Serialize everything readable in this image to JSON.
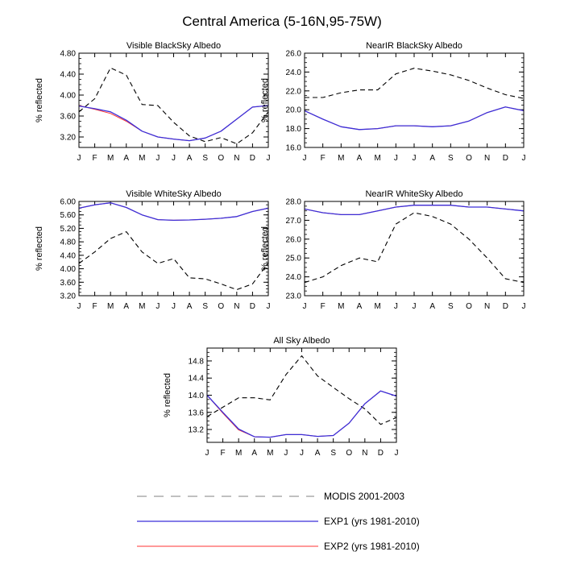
{
  "figure": {
    "title": "Central America (5-16N,95-75W)",
    "legend": {
      "placement": "bottom",
      "entries": [
        {
          "label": "MODIS 2001-2003",
          "color": "#000000",
          "dash": "dashed"
        },
        {
          "label": "EXP1 (yrs 1981-2010)",
          "color": "#3b2fd9",
          "dash": "solid"
        },
        {
          "label": "EXP2 (yrs 1981-2010)",
          "color": "#ff3333",
          "dash": "solid"
        }
      ]
    }
  },
  "chart_data": [
    {
      "type": "line",
      "title": "Visible BlackSky Albedo",
      "xlabel": "",
      "ylabel": "% reflected",
      "categories": [
        "J",
        "F",
        "M",
        "A",
        "M",
        "J",
        "J",
        "A",
        "S",
        "O",
        "N",
        "D",
        "J"
      ],
      "ylim": [
        3.0,
        4.8
      ],
      "yticks": [
        3.2,
        3.6,
        4.0,
        4.4,
        4.8
      ],
      "ytick_labels": [
        "3.20",
        "3.60",
        "4.00",
        "4.40",
        "4.80"
      ],
      "series": [
        {
          "name": "MODIS 2001-2003",
          "values": [
            3.68,
            3.93,
            4.52,
            4.38,
            3.82,
            3.8,
            3.48,
            3.22,
            3.11,
            3.19,
            3.07,
            3.28,
            3.68
          ]
        },
        {
          "name": "EXP1 (yrs 1981-2010)",
          "values": [
            3.79,
            3.74,
            3.68,
            3.52,
            3.31,
            3.2,
            3.16,
            3.13,
            3.18,
            3.31,
            3.54,
            3.77,
            3.8
          ]
        },
        {
          "name": "EXP2 (yrs 1981-2010)",
          "values": [
            3.8,
            3.73,
            3.65,
            3.5,
            3.31,
            3.2,
            3.16,
            3.13,
            3.18,
            3.31,
            3.54,
            3.77,
            3.8
          ]
        }
      ]
    },
    {
      "type": "line",
      "title": "NearIR BlackSky Albedo",
      "xlabel": "",
      "ylabel": "% reflected",
      "categories": [
        "J",
        "F",
        "M",
        "A",
        "M",
        "J",
        "J",
        "A",
        "S",
        "O",
        "N",
        "D",
        "J"
      ],
      "ylim": [
        16.0,
        26.0
      ],
      "yticks": [
        16.0,
        18.0,
        20.0,
        22.0,
        24.0,
        26.0
      ],
      "ytick_labels": [
        "16.0",
        "18.0",
        "20.0",
        "22.0",
        "24.0",
        "26.0"
      ],
      "series": [
        {
          "name": "MODIS 2001-2003",
          "values": [
            21.3,
            21.3,
            21.8,
            22.1,
            22.1,
            23.8,
            24.4,
            24.1,
            23.7,
            23.1,
            22.3,
            21.6,
            21.2
          ]
        },
        {
          "name": "EXP1 (yrs 1981-2010)",
          "values": [
            19.9,
            19.0,
            18.2,
            17.9,
            18.0,
            18.3,
            18.3,
            18.2,
            18.3,
            18.8,
            19.7,
            20.3,
            19.9
          ]
        },
        {
          "name": "EXP2 (yrs 1981-2010)",
          "values": [
            19.9,
            19.0,
            18.2,
            17.9,
            18.0,
            18.3,
            18.3,
            18.2,
            18.3,
            18.8,
            19.7,
            20.3,
            19.9
          ]
        }
      ]
    },
    {
      "type": "line",
      "title": "Visible WhiteSky Albedo",
      "xlabel": "",
      "ylabel": "% reflected",
      "categories": [
        "J",
        "F",
        "M",
        "A",
        "M",
        "J",
        "J",
        "A",
        "S",
        "O",
        "N",
        "D",
        "J"
      ],
      "ylim": [
        3.2,
        6.0
      ],
      "yticks": [
        3.2,
        3.6,
        4.0,
        4.4,
        4.8,
        5.2,
        5.6,
        6.0
      ],
      "ytick_labels": [
        "3.20",
        "3.60",
        "4.00",
        "4.40",
        "4.80",
        "5.20",
        "5.60",
        "6.00"
      ],
      "series": [
        {
          "name": "MODIS 2001-2003",
          "values": [
            4.16,
            4.5,
            4.9,
            5.1,
            4.5,
            4.16,
            4.3,
            3.73,
            3.7,
            3.55,
            3.38,
            3.55,
            4.18
          ]
        },
        {
          "name": "EXP1 (yrs 1981-2010)",
          "values": [
            5.8,
            5.9,
            5.96,
            5.82,
            5.6,
            5.46,
            5.44,
            5.45,
            5.47,
            5.5,
            5.55,
            5.7,
            5.8
          ]
        },
        {
          "name": "EXP2 (yrs 1981-2010)",
          "values": [
            5.8,
            5.9,
            5.96,
            5.82,
            5.6,
            5.46,
            5.44,
            5.45,
            5.47,
            5.5,
            5.55,
            5.7,
            5.8
          ]
        }
      ]
    },
    {
      "type": "line",
      "title": "NearIR WhiteSky Albedo",
      "xlabel": "",
      "ylabel": "% reflected",
      "categories": [
        "J",
        "F",
        "M",
        "A",
        "M",
        "J",
        "J",
        "A",
        "S",
        "O",
        "N",
        "D",
        "J"
      ],
      "ylim": [
        23.0,
        28.0
      ],
      "yticks": [
        23.0,
        24.0,
        25.0,
        26.0,
        27.0,
        28.0
      ],
      "ytick_labels": [
        "23.0",
        "24.0",
        "25.0",
        "26.0",
        "27.0",
        "28.0"
      ],
      "series": [
        {
          "name": "MODIS 2001-2003",
          "values": [
            23.7,
            24.0,
            24.6,
            25.0,
            24.8,
            26.8,
            27.4,
            27.2,
            26.8,
            26.0,
            25.0,
            23.9,
            23.7
          ]
        },
        {
          "name": "EXP1 (yrs 1981-2010)",
          "values": [
            27.6,
            27.4,
            27.3,
            27.3,
            27.5,
            27.7,
            27.8,
            27.8,
            27.8,
            27.7,
            27.7,
            27.6,
            27.5
          ]
        },
        {
          "name": "EXP2 (yrs 1981-2010)",
          "values": [
            27.6,
            27.4,
            27.3,
            27.3,
            27.5,
            27.7,
            27.8,
            27.8,
            27.8,
            27.7,
            27.7,
            27.6,
            27.5
          ]
        }
      ]
    },
    {
      "type": "line",
      "title": "All Sky Albedo",
      "xlabel": "",
      "ylabel": "% reflected",
      "categories": [
        "J",
        "F",
        "M",
        "A",
        "M",
        "J",
        "J",
        "A",
        "S",
        "O",
        "N",
        "D",
        "J"
      ],
      "ylim": [
        12.9,
        15.1
      ],
      "yticks": [
        13.2,
        13.6,
        14.0,
        14.4,
        14.8
      ],
      "ytick_labels": [
        "13.2",
        "13.6",
        "14.0",
        "14.4",
        "14.8"
      ],
      "series": [
        {
          "name": "MODIS 2001-2003",
          "values": [
            13.5,
            13.72,
            13.94,
            13.94,
            13.89,
            14.48,
            14.92,
            14.45,
            14.18,
            13.92,
            13.68,
            13.32,
            13.48
          ]
        },
        {
          "name": "EXP1 (yrs 1981-2010)",
          "values": [
            14.0,
            13.6,
            13.21,
            13.03,
            13.02,
            13.08,
            13.08,
            13.04,
            13.06,
            13.35,
            13.8,
            14.1,
            13.98
          ]
        },
        {
          "name": "EXP2 (yrs 1981-2010)",
          "values": [
            14.0,
            13.58,
            13.19,
            13.03,
            13.02,
            13.08,
            13.08,
            13.04,
            13.06,
            13.35,
            13.8,
            14.1,
            13.98
          ]
        }
      ]
    }
  ]
}
